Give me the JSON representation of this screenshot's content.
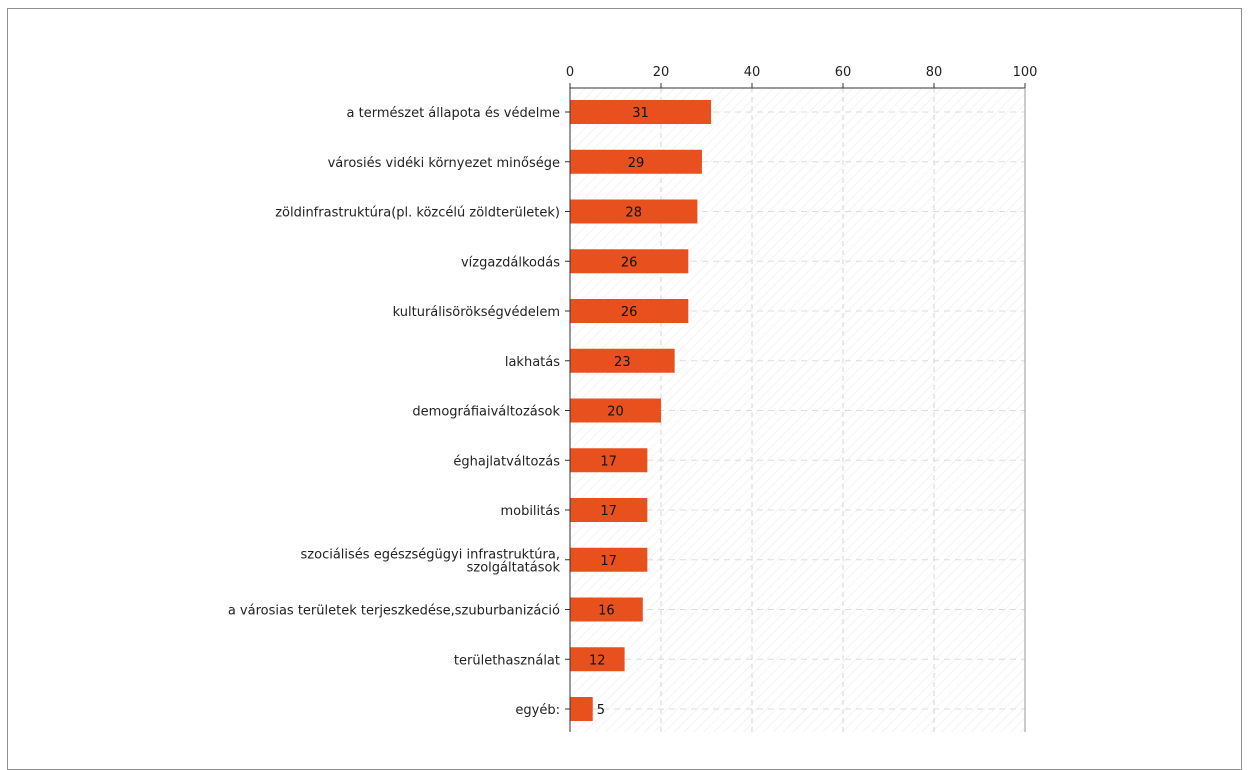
{
  "chart_data": {
    "type": "bar",
    "orientation": "horizontal",
    "categories": [
      "a természet állapota és védelme",
      "városiés vidéki környezet minősége",
      "zöldinfrastruktúra(pl. közcélú zöldterületek)",
      "vízgazdálkodás",
      "kulturálisörökségvédelem",
      "lakhatás",
      "demográfiaiváltozások",
      "éghajlatváltozás",
      "mobilitás",
      "szociálisés egészségügyi infrastruktúra, szolgáltatások",
      "a városias területek terjeszkedése,szuburbanizáció",
      "területhasználat",
      "egyéb:"
    ],
    "category_lines": [
      [
        "a természet állapota és védelme"
      ],
      [
        "városiés vidéki környezet minősége"
      ],
      [
        "zöldinfrastruktúra(pl. közcélú zöldterületek)"
      ],
      [
        "vízgazdálkodás"
      ],
      [
        "kulturálisörökségvédelem"
      ],
      [
        "lakhatás"
      ],
      [
        "demográfiaiváltozások"
      ],
      [
        "éghajlatváltozás"
      ],
      [
        "mobilitás"
      ],
      [
        "szociálisés egészségügyi infrastruktúra,",
        "szolgáltatások"
      ],
      [
        "a városias területek terjeszkedése,szuburbanizáció"
      ],
      [
        "területhasználat"
      ],
      [
        "egyéb:"
      ]
    ],
    "values": [
      31,
      29,
      28,
      26,
      26,
      23,
      20,
      17,
      17,
      17,
      16,
      12,
      5
    ],
    "xlim": [
      0,
      100
    ],
    "xticks": [
      0,
      20,
      40,
      60,
      80,
      100
    ],
    "axis_position": "top",
    "grid": true,
    "bar_color": "#e8501e",
    "title": "",
    "xlabel": "",
    "ylabel": ""
  }
}
